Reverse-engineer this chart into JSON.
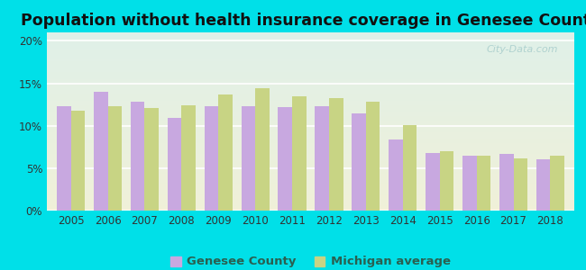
{
  "title": "Population without health insurance coverage in Genesee County",
  "years": [
    2005,
    2006,
    2007,
    2008,
    2009,
    2010,
    2011,
    2012,
    2013,
    2014,
    2015,
    2016,
    2017,
    2018
  ],
  "genesee": [
    12.3,
    14.0,
    12.8,
    10.9,
    12.3,
    12.3,
    12.2,
    12.3,
    11.5,
    8.4,
    6.8,
    6.5,
    6.7,
    6.0
  ],
  "michigan": [
    11.8,
    12.3,
    12.1,
    12.4,
    13.7,
    14.4,
    13.5,
    13.3,
    12.8,
    10.1,
    7.0,
    6.5,
    6.1,
    6.5
  ],
  "genesee_color": "#c8a8e0",
  "michigan_color": "#c8d484",
  "background_outer": "#00e0e8",
  "background_inner_top": "#dff0e8",
  "background_inner_bottom": "#f0f0d8",
  "ylim": [
    0,
    0.21
  ],
  "yticks": [
    0,
    0.05,
    0.1,
    0.15,
    0.2
  ],
  "ytick_labels": [
    "0%",
    "5%",
    "10%",
    "15%",
    "20%"
  ],
  "legend_genesee": "Genesee County",
  "legend_michigan": "Michigan average",
  "bar_width": 0.38,
  "title_fontsize": 12.5,
  "tick_fontsize": 8.5,
  "legend_fontsize": 9.5,
  "legend_text_color": "#2a6050",
  "watermark": "City-Data.com",
  "watermark_color": "#a0c8c8"
}
